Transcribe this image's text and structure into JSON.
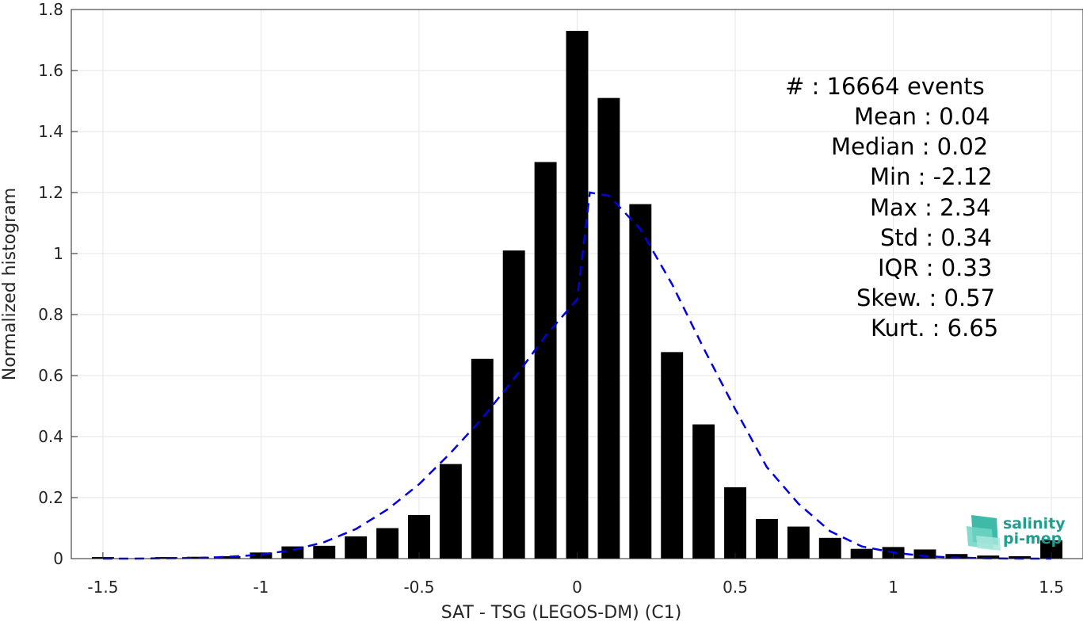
{
  "chart_data": {
    "type": "bar",
    "xlabel": "SAT - TSG (LEGOS-DM) (C1)",
    "ylabel": "Normalized histogram",
    "xlim": [
      -1.6,
      1.6
    ],
    "ylim": [
      0,
      1.8
    ],
    "xticks": [
      -1.5,
      -1,
      -0.5,
      0,
      0.5,
      1,
      1.5
    ],
    "xtick_labels": [
      "-1.5",
      "-1",
      "-0.5",
      "0",
      "0.5",
      "1",
      "1.5"
    ],
    "yticks": [
      0,
      0.2,
      0.4,
      0.6,
      0.8,
      1,
      1.2,
      1.4,
      1.6,
      1.8
    ],
    "ytick_labels": [
      "0",
      "0.2",
      "0.4",
      "0.6",
      "0.8",
      "1",
      "1.2",
      "1.4",
      "1.6",
      "1.8"
    ],
    "grid": true,
    "bar_width": 0.07,
    "bar_color": "#000000",
    "series": [
      {
        "x": [
          -1.5,
          -1.3,
          -1.2,
          -1.1,
          -1.0,
          -0.9,
          -0.8,
          -0.7,
          -0.6,
          -0.5,
          -0.4,
          -0.3,
          -0.2,
          -0.1,
          0.0,
          0.1,
          0.2,
          0.3,
          0.4,
          0.5,
          0.6,
          0.7,
          0.8,
          0.9,
          1.0,
          1.1,
          1.2,
          1.3,
          1.4,
          1.5
        ],
        "values": [
          0.005,
          0.005,
          0.006,
          0.008,
          0.02,
          0.04,
          0.042,
          0.073,
          0.1,
          0.143,
          0.31,
          0.655,
          1.01,
          1.3,
          1.73,
          1.51,
          1.162,
          0.677,
          0.44,
          0.234,
          0.13,
          0.105,
          0.068,
          0.032,
          0.038,
          0.03,
          0.015,
          0.01,
          0.008,
          0.06
        ]
      },
      {
        "type": "line",
        "style": "dashed",
        "color": "#0000e0",
        "x": [
          -1.5,
          -1.4,
          -1.3,
          -1.2,
          -1.1,
          -1.0,
          -0.9,
          -0.8,
          -0.7,
          -0.6,
          -0.5,
          -0.4,
          -0.3,
          -0.2,
          -0.1,
          0.0,
          0.04,
          0.1,
          0.2,
          0.3,
          0.4,
          0.5,
          0.6,
          0.7,
          0.8,
          0.9,
          1.0,
          1.1,
          1.2,
          1.3,
          1.4,
          1.5
        ],
        "values": [
          0.0,
          0.0,
          0.001,
          0.002,
          0.006,
          0.013,
          0.028,
          0.054,
          0.097,
          0.161,
          0.244,
          0.347,
          0.46,
          0.59,
          0.73,
          0.85,
          1.2,
          1.19,
          1.08,
          0.9,
          0.69,
          0.49,
          0.3,
          0.18,
          0.09,
          0.04,
          0.02,
          0.008,
          0.003,
          0.001,
          0.0,
          0.0
        ]
      }
    ],
    "annotations": [
      "#  : 16664 events",
      "Mean : 0.04",
      "Median : 0.02",
      "Min : -2.12",
      "Max : 2.34",
      "Std : 0.34",
      "IQR : 0.33",
      "Skew. : 0.57",
      "Kurt. : 6.65"
    ]
  },
  "logo": {
    "line1": "salinity",
    "line2": "pi-mep"
  }
}
